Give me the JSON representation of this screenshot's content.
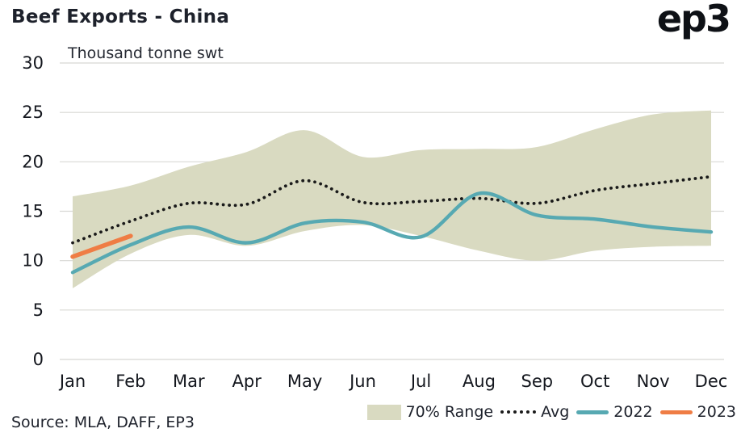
{
  "header": {
    "title": "Beef Exports - China",
    "subtitle": "Thousand tonne swt",
    "logo": "ep3"
  },
  "footer": {
    "source": "Source: MLA, DAFF, EP3"
  },
  "legend": [
    {
      "label": "70% Range",
      "type": "band",
      "color": "#d9dac1"
    },
    {
      "label": "Avg",
      "type": "dotted",
      "color": "#1a1a1a"
    },
    {
      "label": "2022",
      "type": "line",
      "color": "#57a9b2"
    },
    {
      "label": "2023",
      "type": "line",
      "color": "#ef7d45"
    }
  ],
  "chart_data": {
    "type": "line",
    "title": "Beef Exports - China",
    "ylabel": "Thousand tonne swt",
    "ylim": [
      0,
      30
    ],
    "yticks": [
      0,
      5,
      10,
      15,
      20,
      25,
      30
    ],
    "grid": true,
    "legend_position": "bottom",
    "categories": [
      "Jan",
      "Feb",
      "Mar",
      "Apr",
      "May",
      "Jun",
      "Jul",
      "Aug",
      "Sep",
      "Oct",
      "Nov",
      "Dec"
    ],
    "band": {
      "name": "70% Range",
      "color": "#d9dac1",
      "lower": [
        7.2,
        10.7,
        12.6,
        11.5,
        13.0,
        13.6,
        12.5,
        11.0,
        10.0,
        11.0,
        11.4,
        11.5
      ],
      "upper": [
        16.5,
        17.6,
        19.5,
        21.0,
        23.2,
        20.5,
        21.2,
        21.3,
        21.5,
        23.3,
        24.8,
        25.2
      ]
    },
    "series": [
      {
        "name": "Avg",
        "style": "dotted",
        "color": "#1a1a1a",
        "values": [
          11.8,
          14.0,
          15.8,
          15.7,
          18.1,
          15.9,
          16.0,
          16.3,
          15.8,
          17.1,
          17.8,
          18.5
        ]
      },
      {
        "name": "2022",
        "style": "solid",
        "color": "#57a9b2",
        "values": [
          8.8,
          11.6,
          13.4,
          11.8,
          13.8,
          13.9,
          12.4,
          16.8,
          14.6,
          14.2,
          13.4,
          12.9
        ]
      },
      {
        "name": "2023",
        "style": "solid",
        "color": "#ef7d45",
        "values": [
          10.4,
          12.5,
          null,
          null,
          null,
          null,
          null,
          null,
          null,
          null,
          null,
          null
        ]
      }
    ]
  }
}
